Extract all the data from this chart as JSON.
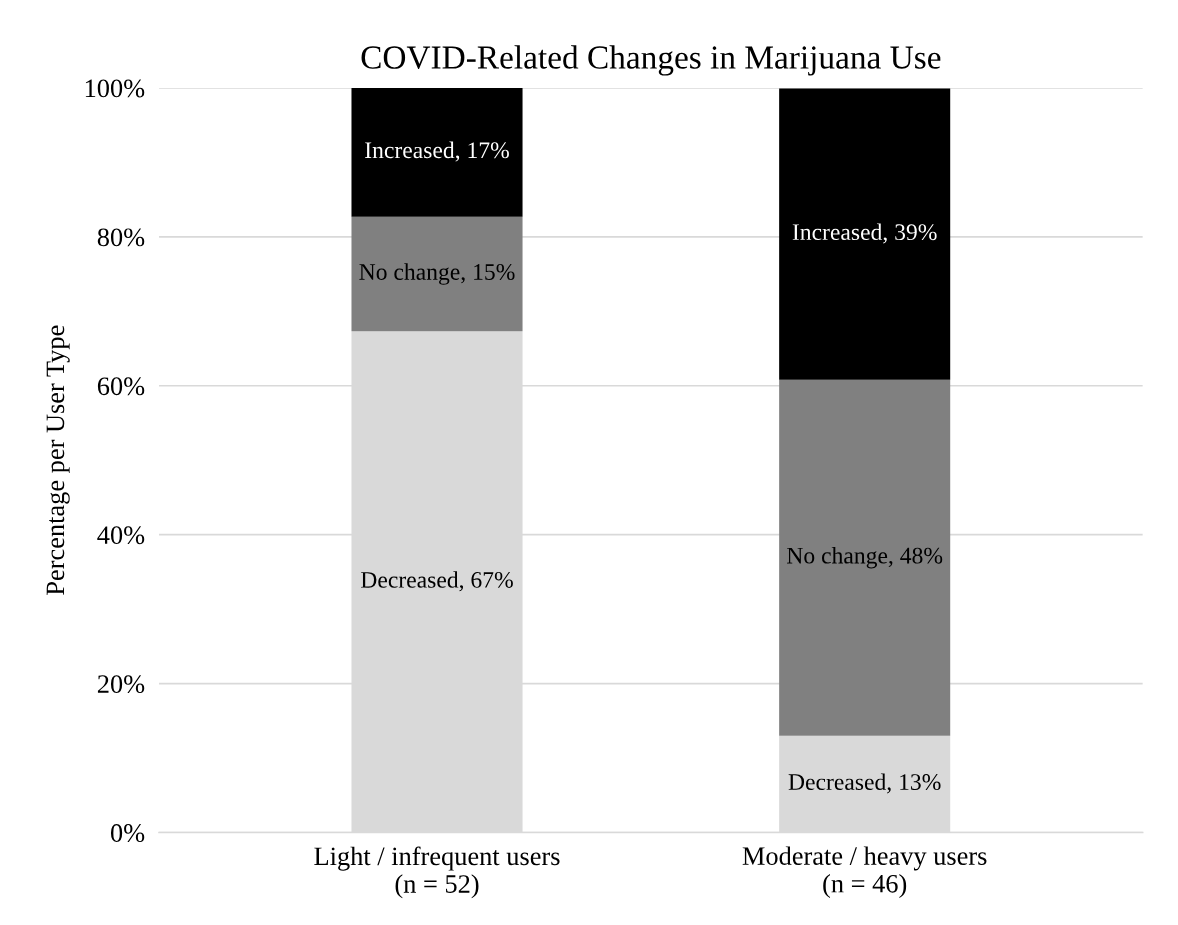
{
  "chart_data": {
    "type": "bar",
    "title": "COVID-Related Changes in Marijuana Use",
    "ylabel": "Percentage per User Type",
    "categories": [
      "Light / infrequent users\n(n = 52)",
      "Moderate / heavy users\n(n = 46)"
    ],
    "stacked": true,
    "series": [
      {
        "color": "#d9d9d9",
        "values": [
          67.3,
          13.0
        ],
        "value_labels": [
          "Decreased, 67%",
          "Decreased, 13%"
        ]
      },
      {
        "color": "#808080",
        "values": [
          15.4,
          47.8
        ],
        "value_labels": [
          "No change, 15%",
          "No change, 48%"
        ]
      },
      {
        "color": "#000000",
        "values": [
          17.3,
          39.1
        ],
        "value_labels": [
          "Increased, 17%",
          "Increased, 39%"
        ]
      }
    ],
    "ylim": [
      0,
      100
    ],
    "yticks": [
      {
        "value": 0,
        "label": "0%"
      },
      {
        "value": 20,
        "label": "20%"
      },
      {
        "value": 40,
        "label": "40%"
      },
      {
        "value": 60,
        "label": "60%"
      },
      {
        "value": 80,
        "label": "80%"
      },
      {
        "value": 100,
        "label": "100%"
      }
    ],
    "grid": "y"
  }
}
